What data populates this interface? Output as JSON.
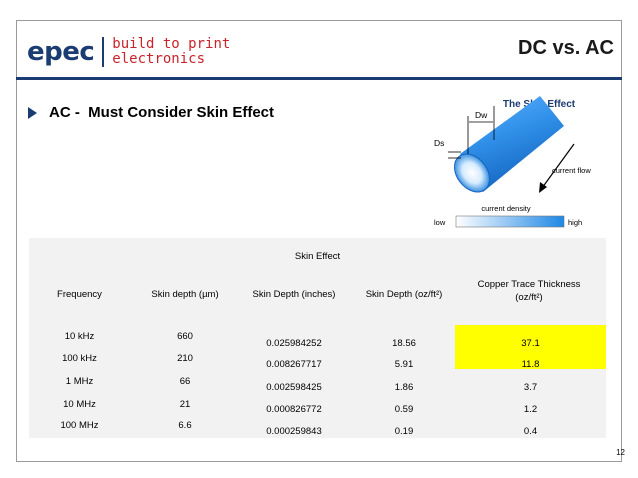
{
  "logo": {
    "word": "epec",
    "tagline_1": "build to print",
    "tagline_2": "electronics"
  },
  "title": "DC vs. AC",
  "bullet": "AC -  Must Consider Skin Effect",
  "figure": {
    "title": "The Skin Effect",
    "dw": "Dw",
    "ds": "Ds",
    "flow": "current flow",
    "density": "current density",
    "low": "low",
    "high": "high",
    "colors": {
      "cylinder": "#2f8fe8",
      "cylinder_dark": "#1565c0",
      "end": "#d5ebff"
    }
  },
  "table": {
    "caption": "Skin Effect",
    "headers": [
      "Frequency",
      "Skin depth (µm)",
      "Skin Depth (inches)",
      "Skin Depth (oz/ft²)",
      "Copper Trace Thickness (oz/ft²)"
    ],
    "header_copper_line1": "Copper Trace Thickness",
    "header_copper_line2": "(oz/ft²)",
    "rows": [
      [
        "10 kHz",
        "660",
        "0.025984252",
        "18.56",
        "37.1"
      ],
      [
        "100 kHz",
        "210",
        "0.008267717",
        "5.91",
        "11.8"
      ],
      [
        "1 MHz",
        "66",
        "0.002598425",
        "1.86",
        "3.7"
      ],
      [
        "10 MHz",
        "21",
        "0.000826772",
        "0.59",
        "1.2"
      ],
      [
        "100 MHz",
        "6.6",
        "0.000259843",
        "0.19",
        "0.4"
      ]
    ],
    "highlight_color": "#ffff00"
  },
  "page_number": "12"
}
